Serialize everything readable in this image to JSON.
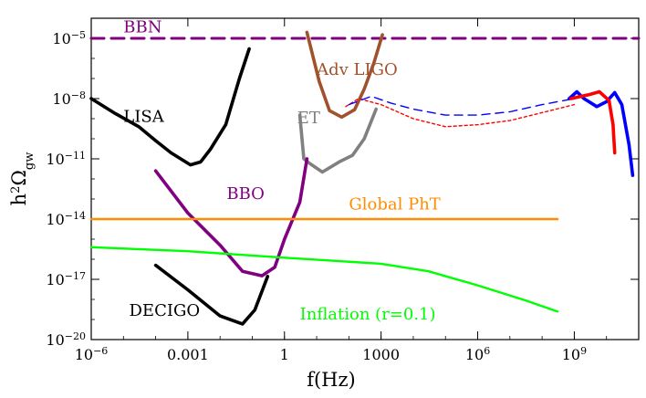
{
  "chart_data": {
    "type": "line",
    "title": "",
    "xlabel": "f(Hz)",
    "ylabel": {
      "base": "h",
      "sup": "2",
      "main": "Ω",
      "sub": "gw"
    },
    "xscale": "log",
    "yscale": "log",
    "xlim": [
      1e-06,
      100000000000.0
    ],
    "ylim": [
      1e-20,
      0.0001
    ],
    "grid": false,
    "x_ticks": [
      {
        "value": 1e-06,
        "base": "10",
        "exp": "−6"
      },
      {
        "value": 0.001,
        "text": "0.001"
      },
      {
        "value": 1,
        "text": "1"
      },
      {
        "value": 1000,
        "text": "1000"
      },
      {
        "value": 1000000.0,
        "base": "10",
        "exp": "6"
      },
      {
        "value": 1000000000.0,
        "base": "10",
        "exp": "9"
      }
    ],
    "y_ticks": [
      {
        "value": 1e-05,
        "base": "10",
        "exp": "−5"
      },
      {
        "value": 1e-08,
        "base": "10",
        "exp": "−8"
      },
      {
        "value": 1e-11,
        "base": "10",
        "exp": "−11"
      },
      {
        "value": 1e-14,
        "base": "10",
        "exp": "−14"
      },
      {
        "value": 1e-17,
        "base": "10",
        "exp": "−17"
      },
      {
        "value": 1e-20,
        "base": "10",
        "exp": "−20"
      }
    ],
    "series": [
      {
        "name": "BBN",
        "label": "BBN",
        "color": "#800080",
        "dash": "dashed",
        "label_at": [
          1e-05,
          2e-05
        ],
        "points": [
          [
            1e-06,
            1e-05
          ],
          [
            100000000000.0,
            1e-05
          ]
        ]
      },
      {
        "name": "LISA",
        "label": "LISA",
        "color": "#000000",
        "dash": "solid",
        "label_at": [
          1e-05,
          7e-10
        ],
        "points": [
          [
            1e-06,
            1e-08
          ],
          [
            5e-06,
            2e-09
          ],
          [
            3e-05,
            4e-10
          ],
          [
            0.0001,
            8e-11
          ],
          [
            0.0003,
            2e-11
          ],
          [
            0.0012,
            5e-12
          ],
          [
            0.0025,
            7e-12
          ],
          [
            0.005,
            3e-11
          ],
          [
            0.015,
            5e-10
          ],
          [
            0.04,
            1e-07
          ],
          [
            0.08,
            3e-06
          ]
        ]
      },
      {
        "name": "Adv LIGO",
        "label": "Adv LIGO",
        "color": "#A0522D",
        "dash": "solid",
        "label_at": [
          10,
          1.5e-07
        ],
        "points": [
          [
            5,
            2e-05
          ],
          [
            12,
            7e-08
          ],
          [
            25,
            2.5e-09
          ],
          [
            60,
            1.2e-09
          ],
          [
            150,
            2.8e-09
          ],
          [
            300,
            3e-08
          ],
          [
            600,
            6e-07
          ],
          [
            1100,
            1.5e-05
          ]
        ]
      },
      {
        "name": "ET",
        "label": "ET",
        "color": "#808080",
        "dash": "solid",
        "label_at": [
          2.5,
          6e-10
        ],
        "points": [
          [
            3,
            1.5e-09
          ],
          [
            4,
            1e-11
          ],
          [
            6,
            6e-12
          ],
          [
            15,
            2.2e-12
          ],
          [
            50,
            7e-12
          ],
          [
            130,
            1.5e-11
          ],
          [
            300,
            1e-10
          ],
          [
            700,
            3e-09
          ]
        ]
      },
      {
        "name": "BBO",
        "label": "BBO",
        "color": "#800080",
        "dash": "solid",
        "label_at": [
          0.016,
          1e-13
        ],
        "points": [
          [
            0.0001,
            2.5e-12
          ],
          [
            0.001,
            2e-14
          ],
          [
            0.01,
            5e-16
          ],
          [
            0.05,
            2.5e-17
          ],
          [
            0.2,
            1.5e-17
          ],
          [
            0.5,
            4e-17
          ],
          [
            1,
            1e-15
          ],
          [
            3,
            7e-14
          ],
          [
            5,
            1e-11
          ]
        ]
      },
      {
        "name": "DECIGO",
        "label": "DECIGO",
        "color": "#000000",
        "dash": "solid",
        "label_at": [
          1.5e-05,
          1.5e-19
        ],
        "points": [
          [
            0.0001,
            5e-17
          ],
          [
            0.001,
            3e-18
          ],
          [
            0.01,
            1.5e-19
          ],
          [
            0.05,
            6e-20
          ],
          [
            0.12,
            3e-19
          ],
          [
            0.3,
            1.4e-17
          ]
        ]
      },
      {
        "name": "Global PhT",
        "label": "Global PhT",
        "color": "#FF8C00",
        "dash": "solid",
        "label_at": [
          100,
          3e-14
        ],
        "points": [
          [
            1e-06,
            1e-14
          ],
          [
            300000000.0,
            1e-14
          ]
        ]
      },
      {
        "name": "Inflation (r=0.1)",
        "label": "Inflation  (r=0.1)",
        "color": "#00FF00",
        "dash": "solid",
        "label_at": [
          3,
          1e-19
        ],
        "points": [
          [
            1e-06,
            4e-16
          ],
          [
            0.001,
            2.5e-16
          ],
          [
            1,
            1.2e-16
          ],
          [
            1000,
            6e-17
          ],
          [
            30000.0,
            2.5e-17
          ],
          [
            1000000.0,
            5e-18
          ],
          [
            30000000.0,
            9e-19
          ],
          [
            300000000.0,
            2.5e-19
          ]
        ]
      },
      {
        "name": "Red solid",
        "label": "",
        "color": "#FF0000",
        "dash": "solid",
        "points": [
          [
            1000000000.0,
            4e-09
          ],
          [
            2000000000.0,
            9e-09
          ],
          [
            4000000000.0,
            1.5e-08
          ],
          [
            10000000000.0,
            9e-09
          ],
          [
            14000000000.0,
            1e-09
          ],
          [
            17000000000.0,
            1e-10
          ]
        ]
      },
      {
        "name": "Red dashed",
        "label": "",
        "color": "#FF0000",
        "dash": "dotted",
        "points": [
          [
            80,
            4e-09
          ],
          [
            200,
            1e-08
          ],
          [
            1000.0,
            5e-09
          ],
          [
            10000.0,
            1e-09
          ],
          [
            100000.0,
            4e-10
          ],
          [
            1000000.0,
            5e-10
          ],
          [
            10000000.0,
            8e-10
          ],
          [
            100000000.0,
            2e-09
          ],
          [
            1000000000.0,
            5e-09
          ]
        ]
      },
      {
        "name": "Blue dashed",
        "label": "",
        "color": "#0000FF",
        "dash": "dashed",
        "points": [
          [
            100,
            5e-09
          ],
          [
            500,
            1.3e-08
          ],
          [
            2000.0,
            6e-09
          ],
          [
            10000.0,
            3e-09
          ],
          [
            100000.0,
            1.5e-09
          ],
          [
            1000000.0,
            1.5e-09
          ],
          [
            10000000.0,
            2.2e-09
          ],
          [
            100000000.0,
            5e-09
          ],
          [
            1000000000.0,
            1e-08
          ]
        ]
      },
      {
        "name": "Blue solid",
        "label": "",
        "color": "#0000FF",
        "dash": "solid",
        "points": [
          [
            700000000.0,
            1e-08
          ],
          [
            1200000000.0,
            2.2e-08
          ],
          [
            2000000000.0,
            1e-08
          ],
          [
            5000000000.0,
            4e-09
          ],
          [
            10000000000.0,
            7e-09
          ],
          [
            18000000000.0,
            2e-08
          ],
          [
            30000000000.0,
            5e-09
          ],
          [
            50000000000.0,
            5e-11
          ],
          [
            65000000000.0,
            1.5e-12
          ]
        ]
      },
      {
        "name": "Red solid right",
        "label": "",
        "color": "#FF0000",
        "dash": "solid",
        "points": [
          [
            800000000.0,
            1e-08
          ],
          [
            3000000000.0,
            1.6e-08
          ],
          [
            6000000000.0,
            2.2e-08
          ],
          [
            12000000000.0,
            8e-09
          ],
          [
            16000000000.0,
            5e-10
          ],
          [
            18000000000.0,
            2e-11
          ]
        ]
      }
    ]
  }
}
